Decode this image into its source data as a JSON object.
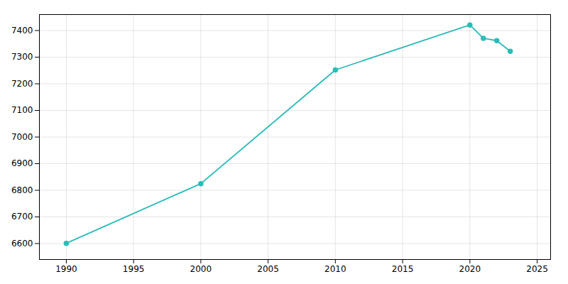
{
  "chart_data": {
    "type": "line",
    "x": [
      1990,
      2000,
      2010,
      2020,
      2021,
      2022,
      2023
    ],
    "values": [
      6601,
      6825,
      7252,
      7421,
      7371,
      7362,
      7322
    ],
    "color": "#2bbcb8",
    "marker": "circle",
    "xlim": [
      1988,
      2026
    ],
    "ylim": [
      6540,
      7460
    ],
    "xticks": [
      1990,
      1995,
      2000,
      2005,
      2010,
      2015,
      2020,
      2025
    ],
    "yticks": [
      6600,
      6700,
      6800,
      6900,
      7000,
      7100,
      7200,
      7300,
      7400
    ],
    "grid": true
  }
}
